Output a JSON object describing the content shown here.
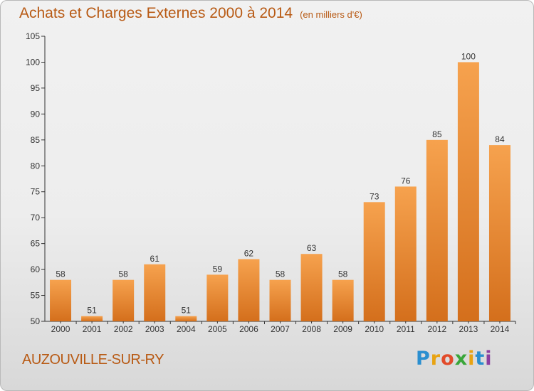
{
  "title": {
    "main": "Achats et Charges Externes 2000 à 2014",
    "unit": "(en milliers d'€)"
  },
  "commune": "AUZOUVILLE-SUR-RY",
  "logo": {
    "text": "Proxiti",
    "letter_colors": [
      "#2a8fd0",
      "#e8a312",
      "#e24b2a",
      "#3aa63a",
      "#e8a312",
      "#2a8fd0",
      "#8c3fa0"
    ]
  },
  "colors": {
    "bar_top": "#f6a24e",
    "bar_bottom": "#d46f1c",
    "title": "#b85a14"
  },
  "chart_data": {
    "type": "bar",
    "categories": [
      "2000",
      "2001",
      "2002",
      "2003",
      "2004",
      "2005",
      "2006",
      "2007",
      "2008",
      "2009",
      "2010",
      "2011",
      "2012",
      "2013",
      "2014"
    ],
    "values": [
      58,
      51,
      58,
      61,
      51,
      59,
      62,
      58,
      63,
      58,
      73,
      76,
      85,
      100,
      84
    ],
    "ylim": [
      50,
      105
    ],
    "yticks": [
      50,
      55,
      60,
      65,
      70,
      75,
      80,
      85,
      90,
      95,
      100,
      105
    ],
    "grid": false
  }
}
